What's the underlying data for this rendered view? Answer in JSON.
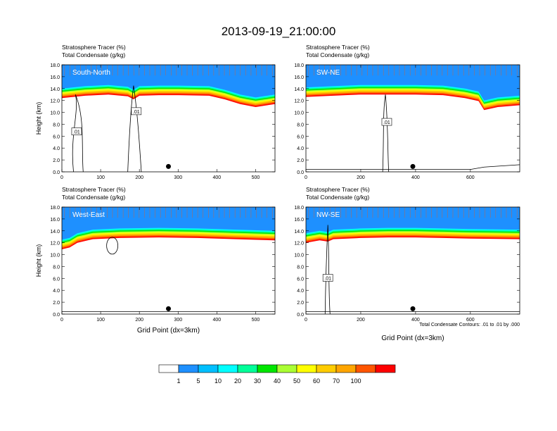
{
  "title": "2013-09-19_21:00:00",
  "chart_data": [
    {
      "type": "heatmap",
      "title": "South-North",
      "label_line1": "Stratosphere Tracer   (%)",
      "label_line2": "Total Condensate   (g/kg)",
      "ylabel": "Height (km)",
      "xlabel": "",
      "xlim": [
        0,
        550
      ],
      "ylim": [
        0,
        18
      ],
      "xticks": [
        0,
        100,
        200,
        300,
        400,
        500
      ],
      "yticks": [
        "0.0",
        "2.0",
        "4.0",
        "6.0",
        "8.0",
        "10.0",
        "12.0",
        "14.0",
        "16.0",
        "18.0"
      ],
      "tracer_boundary_km": [
        [
          0,
          14.0
        ],
        [
          60,
          14.4
        ],
        [
          120,
          14.6
        ],
        [
          170,
          14.3
        ],
        [
          185,
          13.8
        ],
        [
          200,
          14.4
        ],
        [
          250,
          14.5
        ],
        [
          300,
          14.5
        ],
        [
          380,
          14.4
        ],
        [
          420,
          13.8
        ],
        [
          460,
          13.0
        ],
        [
          500,
          12.5
        ],
        [
          550,
          13.0
        ]
      ],
      "tropopause_spread_km": 1.6,
      "contour_labels": [
        ".01",
        ".01"
      ],
      "marker_x": 275
    },
    {
      "type": "heatmap",
      "title": "SW-NE",
      "label_line1": "Stratosphere Tracer   (%)",
      "label_line2": "Total Condensate   (g/kg)",
      "ylabel": "",
      "xlabel": "",
      "xlim": [
        0,
        780
      ],
      "ylim": [
        0,
        18
      ],
      "xticks": [
        0,
        200,
        400,
        600
      ],
      "yticks": [
        "0.0",
        "2.0",
        "4.0",
        "6.0",
        "8.0",
        "10.0",
        "12.0",
        "14.0",
        "16.0",
        "18.0"
      ],
      "tracer_boundary_km": [
        [
          0,
          14.2
        ],
        [
          100,
          14.4
        ],
        [
          200,
          14.6
        ],
        [
          300,
          14.6
        ],
        [
          400,
          14.6
        ],
        [
          500,
          14.5
        ],
        [
          580,
          14.0
        ],
        [
          630,
          13.5
        ],
        [
          650,
          12.0
        ],
        [
          700,
          12.5
        ],
        [
          780,
          12.8
        ]
      ],
      "tropopause_spread_km": 1.6,
      "contour_labels": [
        ".01"
      ],
      "marker_x": 390
    },
    {
      "type": "heatmap",
      "title": "West-East",
      "label_line1": "Stratosphere Tracer   (%)",
      "label_line2": "Total Condensate   (g/kg)",
      "ylabel": "Height (km)",
      "xlabel": "Grid Point (dx=3km)",
      "xlim": [
        0,
        550
      ],
      "ylim": [
        0,
        18
      ],
      "xticks": [
        0,
        100,
        200,
        300,
        400,
        500
      ],
      "yticks": [
        "0.0",
        "2.0",
        "4.0",
        "6.0",
        "8.0",
        "10.0",
        "12.0",
        "14.0",
        "16.0",
        "18.0"
      ],
      "tracer_boundary_km": [
        [
          0,
          12.5
        ],
        [
          20,
          12.8
        ],
        [
          40,
          13.6
        ],
        [
          80,
          14.2
        ],
        [
          150,
          14.4
        ],
        [
          250,
          14.5
        ],
        [
          350,
          14.4
        ],
        [
          450,
          14.2
        ],
        [
          550,
          14.0
        ]
      ],
      "tropopause_spread_km": 1.6,
      "contour_labels": [],
      "marker_x": 275
    },
    {
      "type": "heatmap",
      "title": "NW-SE",
      "label_line1": "Stratosphere Tracer   (%)",
      "label_line2": "Total Condensate   (g/kg)",
      "ylabel": "",
      "xlabel": "Grid Point (dx=3km)",
      "xlim": [
        0,
        780
      ],
      "ylim": [
        0,
        18
      ],
      "xticks": [
        0,
        200,
        400,
        600
      ],
      "yticks": [
        "0.0",
        "2.0",
        "4.0",
        "6.0",
        "8.0",
        "10.0",
        "12.0",
        "14.0",
        "16.0",
        "18.0"
      ],
      "tracer_boundary_km": [
        [
          0,
          13.6
        ],
        [
          50,
          14.0
        ],
        [
          80,
          13.8
        ],
        [
          100,
          14.2
        ],
        [
          200,
          14.4
        ],
        [
          300,
          14.5
        ],
        [
          400,
          14.5
        ],
        [
          500,
          14.4
        ],
        [
          600,
          14.3
        ],
        [
          780,
          14.2
        ]
      ],
      "tropopause_spread_km": 1.6,
      "contour_labels": [
        ".01"
      ],
      "marker_x": 390
    }
  ],
  "contour_note": "Total Condensate Contours: .01 to .01 by .000",
  "colorbar": {
    "labels": [
      "1",
      "5",
      "10",
      "20",
      "30",
      "40",
      "50",
      "60",
      "70",
      "100"
    ],
    "colors": [
      "#ffffff",
      "#1e90ff",
      "#00bfff",
      "#00ffff",
      "#00ff99",
      "#00e600",
      "#aaff33",
      "#ffff00",
      "#ffcc00",
      "#ffa500",
      "#ff5500",
      "#ff0000"
    ]
  }
}
